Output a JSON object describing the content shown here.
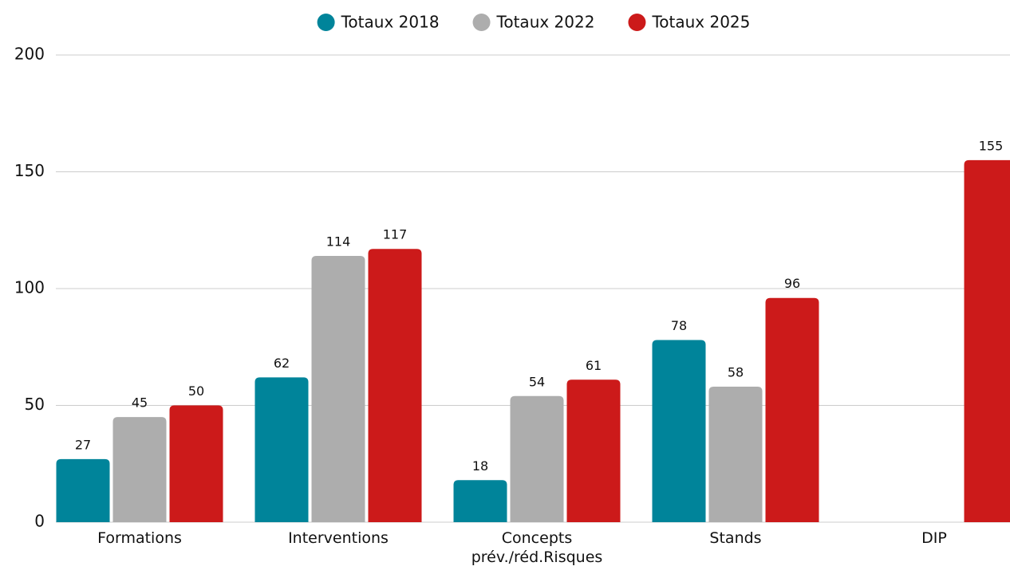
{
  "chart_data": {
    "type": "bar",
    "categories": [
      "Formations",
      "Interventions",
      "Concepts prév./réd.Risques",
      "Stands",
      "DIP"
    ],
    "series": [
      {
        "name": "Totaux 2018",
        "color": "#00849a",
        "values": [
          27,
          62,
          18,
          78,
          null
        ]
      },
      {
        "name": "Totaux 2022",
        "color": "#adadad",
        "values": [
          45,
          114,
          54,
          58,
          null
        ]
      },
      {
        "name": "Totaux 2025",
        "color": "#cc1a1a",
        "values": [
          50,
          117,
          61,
          96,
          155
        ]
      }
    ],
    "ylim": [
      0,
      200
    ],
    "yticks": [
      0,
      50,
      100,
      150,
      200
    ],
    "grid": true,
    "legend": "top"
  }
}
